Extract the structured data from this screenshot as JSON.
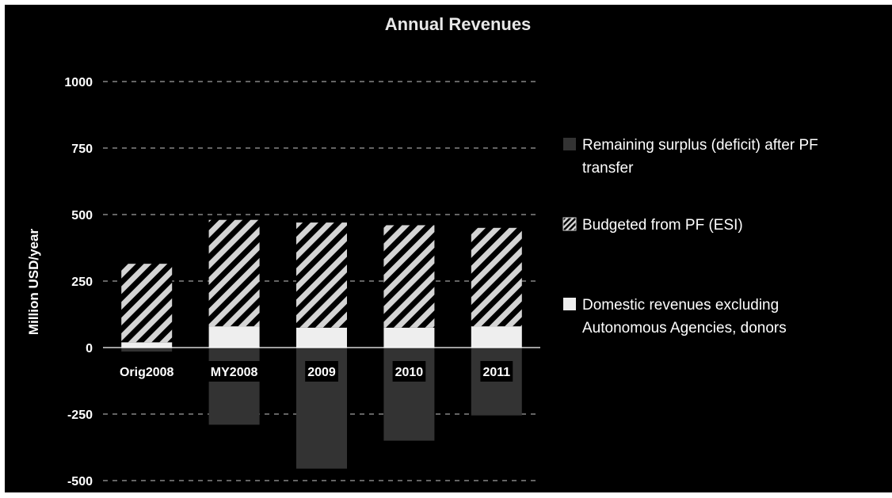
{
  "chart_data": {
    "type": "bar",
    "stacked": true,
    "title": "Annual Revenues",
    "xlabel": "",
    "ylabel": "Million USD/year",
    "ylim": [
      -500,
      1000
    ],
    "yticks": [
      1000,
      750,
      500,
      250,
      0,
      -250,
      -500
    ],
    "grid": "horizontal dashed",
    "legend_position": "right",
    "categories": [
      "Orig2008",
      "MY2008",
      "2009",
      "2010",
      "2011"
    ],
    "series": [
      {
        "name": "Remaining surplus (deficit) after PF transfer",
        "values": [
          -15,
          -290,
          -455,
          -350,
          -255
        ],
        "color": "#333333",
        "pattern": "solid"
      },
      {
        "name": "Budgeted from PF (ESI)",
        "values": [
          295,
          400,
          395,
          385,
          370
        ],
        "color": "#ffffff",
        "pattern": "hatched"
      },
      {
        "name": "Domestic revenues excluding Autonomous Agencies, donors",
        "values": [
          20,
          80,
          75,
          75,
          80
        ],
        "color": "#eeeeee",
        "pattern": "solid"
      }
    ],
    "legend_lines": [
      [
        "Remaining surplus (deficit) after PF",
        "transfer"
      ],
      [
        "Budgeted from PF (ESI)"
      ],
      [
        "Domestic revenues excluding",
        "Autonomous Agencies, donors"
      ]
    ]
  }
}
